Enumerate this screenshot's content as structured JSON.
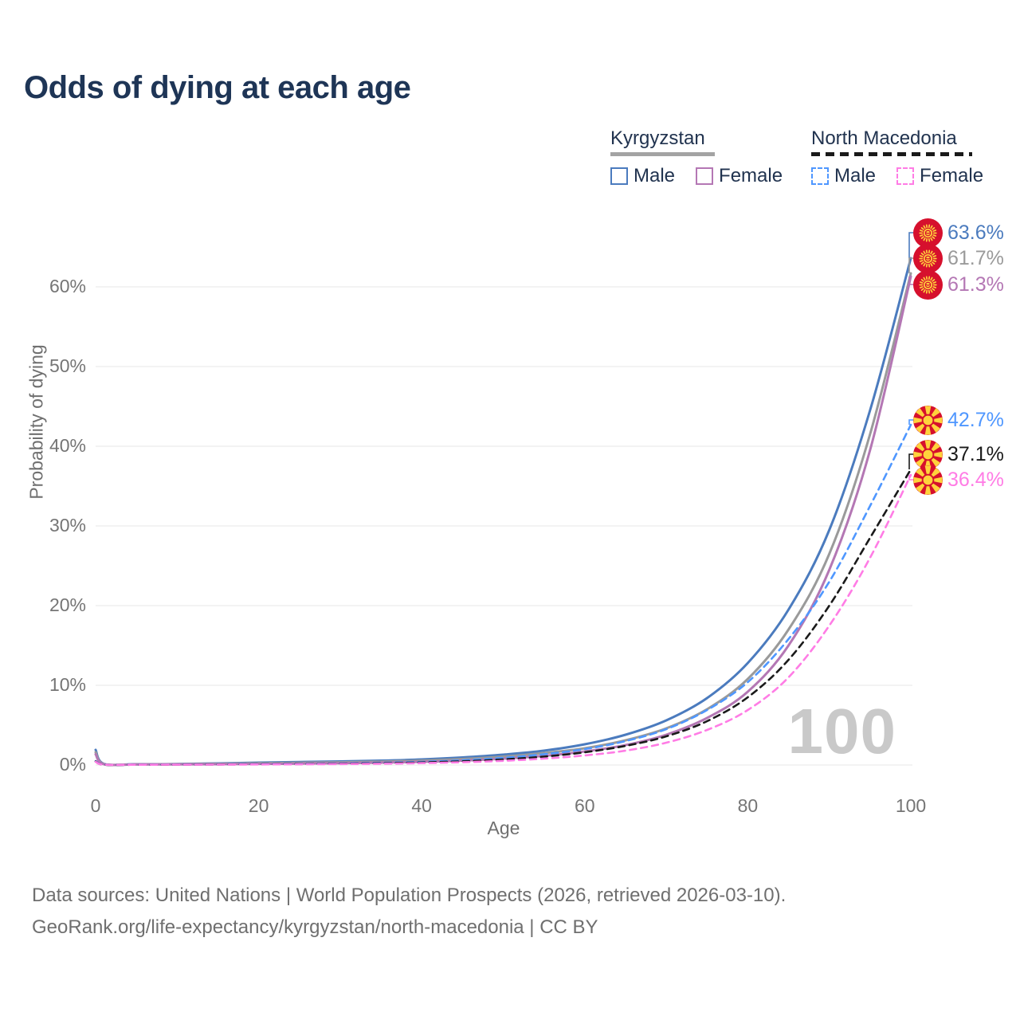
{
  "header": {
    "title": "Odds of dying at each age"
  },
  "legend": {
    "groups": [
      {
        "label": "Kyrgyzstan",
        "rule_color": "#a3a3a3",
        "rule_style": "solid",
        "items": [
          {
            "label": "Male",
            "series": 0
          },
          {
            "label": "Female",
            "series": 2
          }
        ]
      },
      {
        "label": "North Macedonia",
        "rule_color": "#1a1a1a",
        "rule_style": "dashed",
        "items": [
          {
            "label": "Male",
            "series": 3
          },
          {
            "label": "Female",
            "series": 5
          }
        ]
      }
    ]
  },
  "chart_data": {
    "type": "line",
    "title": "Odds of dying at each age",
    "xlabel": "Age",
    "ylabel": "Probability of dying",
    "xlim": [
      0,
      100
    ],
    "ylim": [
      0,
      66
    ],
    "x_ticks": [
      0,
      20,
      40,
      60,
      80,
      100
    ],
    "y_ticks": [
      0,
      10,
      20,
      30,
      40,
      50,
      60
    ],
    "y_tick_suffix": "%",
    "grid": "horizontal",
    "gridline_color": "#ececec",
    "age_counter_watermark": "100",
    "x": [
      0,
      1,
      5,
      10,
      15,
      20,
      25,
      30,
      35,
      40,
      45,
      50,
      55,
      60,
      65,
      70,
      75,
      80,
      85,
      90,
      95,
      100
    ],
    "series": [
      {
        "name": "Kyrgyzstan Male",
        "country": "Kyrgyzstan",
        "sex": "Male",
        "flag": "kyrgyzstan",
        "color": "#4b7bbe",
        "dash": "solid",
        "end_label": "63.6%",
        "values": [
          1.9,
          0.15,
          0.1,
          0.12,
          0.2,
          0.3,
          0.38,
          0.45,
          0.55,
          0.7,
          0.95,
          1.3,
          1.8,
          2.6,
          3.8,
          5.6,
          8.4,
          12.8,
          19.5,
          29.5,
          44.5,
          63.6
        ]
      },
      {
        "name": "Kyrgyzstan All",
        "country": "Kyrgyzstan",
        "sex": "All",
        "flag": "kyrgyzstan",
        "color": "#9a9a9a",
        "dash": "solid",
        "end_label": "61.7%",
        "values": [
          1.6,
          0.12,
          0.08,
          0.1,
          0.15,
          0.22,
          0.28,
          0.34,
          0.42,
          0.55,
          0.75,
          1.05,
          1.5,
          2.1,
          3.1,
          4.6,
          7.0,
          10.8,
          17.0,
          26.5,
          41.5,
          61.7
        ]
      },
      {
        "name": "Kyrgyzstan Female",
        "country": "Kyrgyzstan",
        "sex": "Female",
        "flag": "kyrgyzstan",
        "color": "#b477b4",
        "dash": "solid",
        "end_label": "61.3%",
        "values": [
          1.35,
          0.1,
          0.07,
          0.08,
          0.1,
          0.14,
          0.18,
          0.23,
          0.3,
          0.4,
          0.55,
          0.8,
          1.15,
          1.7,
          2.5,
          3.8,
          5.9,
          9.2,
          15.0,
          24.5,
          39.5,
          61.3
        ]
      },
      {
        "name": "North Macedonia Male",
        "country": "North Macedonia",
        "sex": "Male",
        "flag": "north-macedonia",
        "color": "#4f97ff",
        "dash": "dashed",
        "end_label": "42.7%",
        "values": [
          0.5,
          0.05,
          0.04,
          0.05,
          0.08,
          0.12,
          0.15,
          0.2,
          0.28,
          0.4,
          0.6,
          0.9,
          1.35,
          2.0,
          3.0,
          4.5,
          6.9,
          10.4,
          15.8,
          23.0,
          32.5,
          42.7
        ]
      },
      {
        "name": "North Macedonia All",
        "country": "North Macedonia",
        "sex": "All",
        "flag": "north-macedonia",
        "color": "#1a1a1a",
        "dash": "dashed",
        "end_label": "37.1%",
        "values": [
          0.45,
          0.04,
          0.03,
          0.04,
          0.06,
          0.09,
          0.12,
          0.16,
          0.22,
          0.32,
          0.47,
          0.7,
          1.05,
          1.6,
          2.4,
          3.6,
          5.5,
          8.5,
          13.2,
          20.0,
          28.5,
          37.1
        ]
      },
      {
        "name": "North Macedonia Female",
        "country": "North Macedonia",
        "sex": "Female",
        "flag": "north-macedonia",
        "color": "#ff7ce5",
        "dash": "dashed",
        "end_label": "36.4%",
        "values": [
          0.4,
          0.04,
          0.03,
          0.04,
          0.05,
          0.07,
          0.09,
          0.12,
          0.16,
          0.24,
          0.35,
          0.52,
          0.8,
          1.2,
          1.8,
          2.8,
          4.4,
          6.9,
          11.0,
          17.5,
          26.0,
          36.4
        ]
      }
    ]
  },
  "footer": {
    "line1": "Data sources: United Nations | World Population Prospects (2026, retrieved 2026-03-10).",
    "line2": "GeoRank.org/life-expectancy/kyrgyzstan/north-macedonia | CC BY"
  }
}
